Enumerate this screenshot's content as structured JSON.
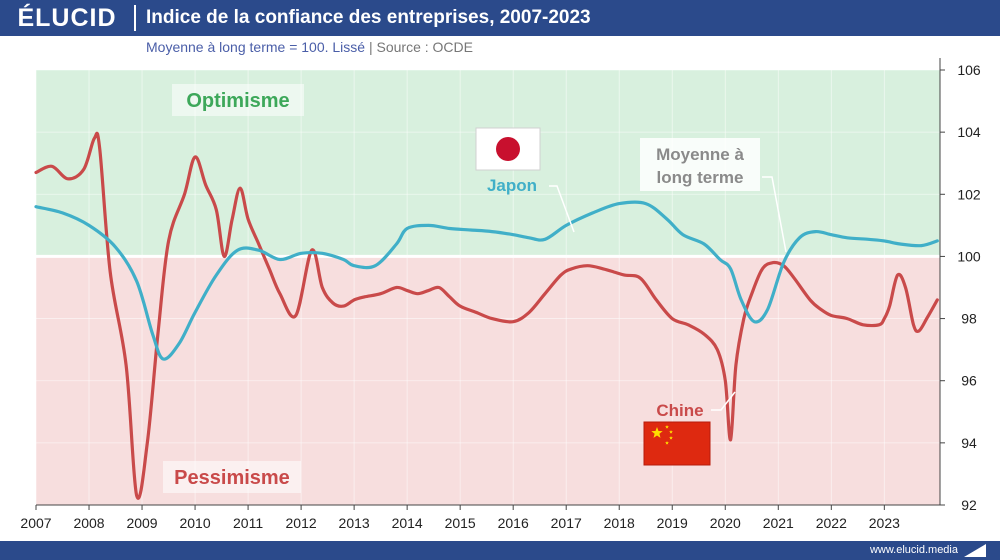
{
  "header": {
    "logo": "ÉLUCID",
    "title": "Indice de la confiance des entreprises, 2007-2023",
    "subtitle_main": "Moyenne à long terme = 100. Lissé",
    "subtitle_sep": "|",
    "subtitle_source": "Source : OCDE"
  },
  "footer": {
    "site": "www.elucid.media"
  },
  "chart_data": {
    "type": "line",
    "ylim": [
      92,
      106
    ],
    "yticks": [
      92,
      94,
      96,
      98,
      100,
      102,
      104,
      106
    ],
    "xlim": [
      2007,
      2024.05
    ],
    "xticks": [
      "2007",
      "2008",
      "2009",
      "2010",
      "2011",
      "2012",
      "2013",
      "2014",
      "2015",
      "2016",
      "2017",
      "2018",
      "2019",
      "2020",
      "2021",
      "2022",
      "2023"
    ],
    "reference": {
      "value": 100,
      "label_line1": "Moyenne à",
      "label_line2": "long terme"
    },
    "zones": {
      "upper": "Optimisme",
      "lower": "Pessimisme",
      "upper_color": "#d8f0de",
      "lower_color": "#f7dede"
    },
    "series": [
      {
        "name": "Japon",
        "color": "#40afc8",
        "flag": "japan",
        "x": [
          2007.0,
          2007.5,
          2008.0,
          2008.5,
          2008.9,
          2009.2,
          2009.4,
          2009.7,
          2010.0,
          2010.4,
          2010.8,
          2011.2,
          2011.6,
          2012.0,
          2012.4,
          2012.8,
          2013.0,
          2013.4,
          2013.8,
          2014.0,
          2014.4,
          2014.8,
          2015.2,
          2015.6,
          2016.0,
          2016.3,
          2016.6,
          2017.0,
          2017.5,
          2018.0,
          2018.5,
          2018.9,
          2019.2,
          2019.6,
          2019.9,
          2020.1,
          2020.3,
          2020.55,
          2020.8,
          2021.1,
          2021.4,
          2021.7,
          2022.0,
          2022.3,
          2022.7,
          2023.0,
          2023.3,
          2023.7,
          2024.0
        ],
        "y": [
          101.6,
          101.4,
          101.0,
          100.3,
          99.2,
          97.5,
          96.7,
          97.2,
          98.2,
          99.4,
          100.2,
          100.2,
          99.9,
          100.1,
          100.1,
          99.9,
          99.7,
          99.7,
          100.4,
          100.9,
          101.0,
          100.9,
          100.85,
          100.8,
          100.7,
          100.6,
          100.55,
          101.0,
          101.4,
          101.7,
          101.7,
          101.2,
          100.7,
          100.4,
          99.9,
          99.6,
          98.6,
          97.9,
          98.3,
          99.8,
          100.6,
          100.8,
          100.7,
          100.6,
          100.55,
          100.5,
          100.4,
          100.35,
          100.5
        ]
      },
      {
        "name": "Chine",
        "color": "#c94a4a",
        "flag": "china",
        "x": [
          2007.0,
          2007.3,
          2007.6,
          2007.9,
          2008.1,
          2008.2,
          2008.4,
          2008.7,
          2008.9,
          2009.1,
          2009.3,
          2009.5,
          2009.8,
          2010.0,
          2010.2,
          2010.4,
          2010.55,
          2010.7,
          2010.85,
          2011.0,
          2011.2,
          2011.4,
          2011.6,
          2011.9,
          2012.2,
          2012.4,
          2012.6,
          2012.8,
          2013.0,
          2013.2,
          2013.5,
          2013.8,
          2014.0,
          2014.2,
          2014.4,
          2014.6,
          2014.8,
          2015.0,
          2015.3,
          2015.6,
          2016.0,
          2016.3,
          2016.6,
          2016.9,
          2017.1,
          2017.4,
          2017.7,
          2017.9,
          2018.1,
          2018.4,
          2018.7,
          2019.0,
          2019.3,
          2019.6,
          2019.85,
          2020.0,
          2020.1,
          2020.2,
          2020.35,
          2020.5,
          2020.7,
          2020.9,
          2021.1,
          2021.3,
          2021.6,
          2021.8,
          2022.0,
          2022.3,
          2022.6,
          2022.9,
          2023.0,
          2023.1,
          2023.25,
          2023.4,
          2023.55,
          2023.65,
          2023.8,
          2024.0
        ],
        "y": [
          102.7,
          102.9,
          102.5,
          102.8,
          103.8,
          103.5,
          99.5,
          96.5,
          92.3,
          94.0,
          97.5,
          100.5,
          102.0,
          103.2,
          102.3,
          101.5,
          100.0,
          101.2,
          102.2,
          101.2,
          100.4,
          99.6,
          98.8,
          98.1,
          100.2,
          99.0,
          98.5,
          98.4,
          98.6,
          98.7,
          98.8,
          99.0,
          98.9,
          98.8,
          98.9,
          99.0,
          98.7,
          98.4,
          98.2,
          98.0,
          97.9,
          98.2,
          98.8,
          99.4,
          99.6,
          99.7,
          99.6,
          99.5,
          99.4,
          99.3,
          98.6,
          98.0,
          97.8,
          97.5,
          97.0,
          96.0,
          94.1,
          96.5,
          98.0,
          98.8,
          99.6,
          99.8,
          99.7,
          99.3,
          98.6,
          98.3,
          98.1,
          98.0,
          97.8,
          97.8,
          98.0,
          98.4,
          99.4,
          99.0,
          97.8,
          97.6,
          98.0,
          98.6
        ]
      }
    ]
  }
}
